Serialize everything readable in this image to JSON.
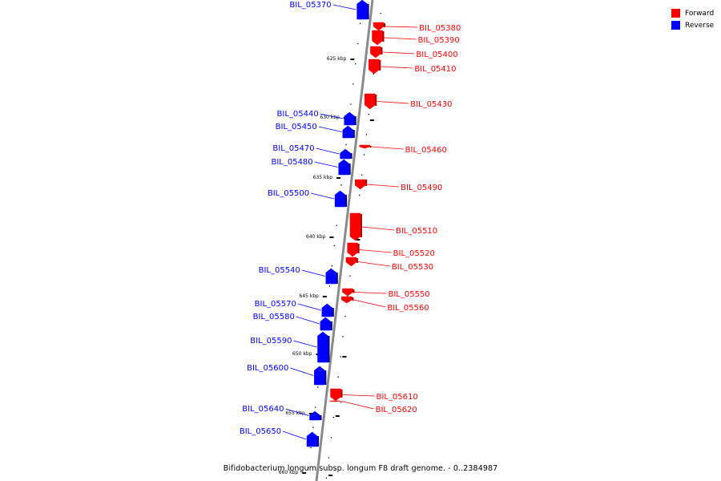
{
  "title": "Bifidobacterium longum subsp. longum F8 draft genome. - 0..2384987",
  "legend": [
    {
      "label": "Forward",
      "color": "#ff0000"
    },
    {
      "label": "Reverse",
      "color": "#0000ff"
    }
  ],
  "colors": {
    "forward": "#ff0000",
    "reverse": "#0000ff",
    "axis": "#8a8a8a",
    "ticks": "#000000"
  },
  "scale_ticks": [
    {
      "label": "625 kbp"
    },
    {
      "label": "630 kbp"
    },
    {
      "label": "635 kbp"
    },
    {
      "label": "640 kbp"
    },
    {
      "label": "645 kbp"
    },
    {
      "label": "650 kbp"
    },
    {
      "label": "655 kbp"
    },
    {
      "label": "660 kbp"
    }
  ],
  "genes": [
    {
      "label": "BIL_05370",
      "strand": "reverse"
    },
    {
      "label": "BIL_05380",
      "strand": "forward"
    },
    {
      "label": "BIL_05390",
      "strand": "forward"
    },
    {
      "label": "BIL_05400",
      "strand": "forward"
    },
    {
      "label": "BIL_05410",
      "strand": "forward"
    },
    {
      "label": "BIL_05430",
      "strand": "forward"
    },
    {
      "label": "BIL_05440",
      "strand": "reverse"
    },
    {
      "label": "BIL_05450",
      "strand": "reverse"
    },
    {
      "label": "BIL_05460",
      "strand": "forward"
    },
    {
      "label": "BIL_05470",
      "strand": "reverse"
    },
    {
      "label": "BIL_05480",
      "strand": "reverse"
    },
    {
      "label": "BIL_05490",
      "strand": "forward"
    },
    {
      "label": "BIL_05500",
      "strand": "reverse"
    },
    {
      "label": "BIL_05510",
      "strand": "forward"
    },
    {
      "label": "BIL_05520",
      "strand": "forward"
    },
    {
      "label": "BIL_05530",
      "strand": "forward"
    },
    {
      "label": "BIL_05540",
      "strand": "reverse"
    },
    {
      "label": "BIL_05550",
      "strand": "forward"
    },
    {
      "label": "BIL_05560",
      "strand": "forward"
    },
    {
      "label": "BIL_05570",
      "strand": "reverse"
    },
    {
      "label": "BIL_05580",
      "strand": "reverse"
    },
    {
      "label": "BIL_05590",
      "strand": "reverse"
    },
    {
      "label": "BIL_05600",
      "strand": "reverse"
    },
    {
      "label": "BIL_05610",
      "strand": "forward"
    },
    {
      "label": "BIL_05620",
      "strand": "forward"
    },
    {
      "label": "BIL_05640",
      "strand": "reverse"
    },
    {
      "label": "BIL_05650",
      "strand": "reverse"
    }
  ]
}
